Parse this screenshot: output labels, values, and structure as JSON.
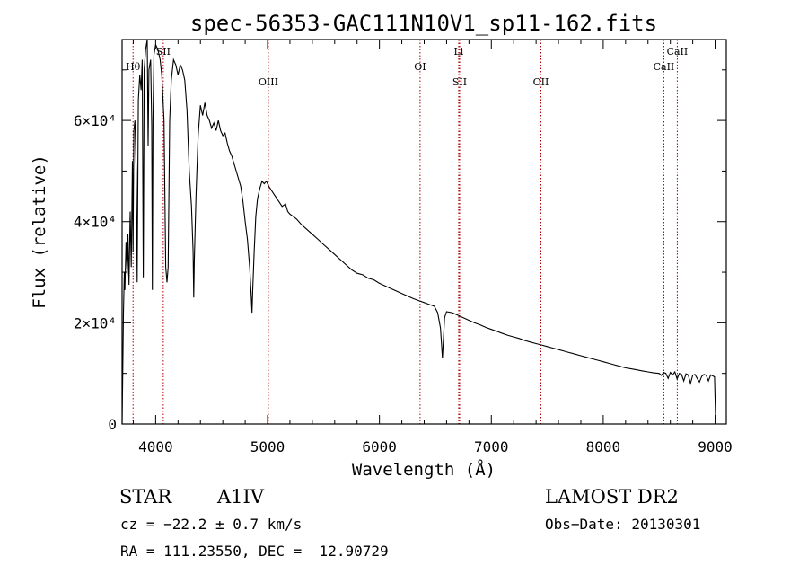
{
  "chart_data": {
    "type": "line",
    "title": "spec-56353-GAC111N10V1_sp11-162.fits",
    "xlabel": "Wavelength (Å)",
    "ylabel": "Flux (relative)",
    "xlim": [
      3700,
      9100
    ],
    "ylim": [
      0,
      76000
    ],
    "xticks": [
      {
        "value": 4000,
        "label": "4000"
      },
      {
        "value": 5000,
        "label": "5000"
      },
      {
        "value": 6000,
        "label": "6000"
      },
      {
        "value": 7000,
        "label": "7000"
      },
      {
        "value": 8000,
        "label": "8000"
      },
      {
        "value": 9000,
        "label": "9000"
      }
    ],
    "yticks": [
      {
        "value": 0,
        "label": "0"
      },
      {
        "value": 20000,
        "label": "2×10⁴"
      },
      {
        "value": 40000,
        "label": "4×10⁴"
      },
      {
        "value": 60000,
        "label": "6×10⁴"
      }
    ],
    "lines": [
      {
        "label": "Hθ",
        "wavelength": 3798,
        "row": 2
      },
      {
        "label": "SII",
        "wavelength": 4068,
        "row": 1
      },
      {
        "label": "OIII",
        "wavelength": 5007,
        "row": 3
      },
      {
        "label": "OI",
        "wavelength": 6363,
        "row": 2
      },
      {
        "label": "Li",
        "wavelength": 6708,
        "row": 1
      },
      {
        "label": "SII",
        "wavelength": 6717,
        "row": 3
      },
      {
        "label": "OII",
        "wavelength": 7443,
        "row": 3
      },
      {
        "label": "CaII",
        "wavelength": 8542,
        "row": 2
      },
      {
        "label": "CaII",
        "wavelength": 8662,
        "row": 1
      }
    ],
    "series": [
      {
        "name": "flux",
        "points": [
          [
            3700,
            0
          ],
          [
            3705,
            8000
          ],
          [
            3712,
            22000
          ],
          [
            3720,
            30000
          ],
          [
            3725,
            26500
          ],
          [
            3735,
            36000
          ],
          [
            3745,
            29500
          ],
          [
            3752,
            37500
          ],
          [
            3762,
            27500
          ],
          [
            3772,
            42000
          ],
          [
            3782,
            31000
          ],
          [
            3792,
            52000
          ],
          [
            3798,
            34000
          ],
          [
            3805,
            58000
          ],
          [
            3815,
            60000
          ],
          [
            3826,
            50000
          ],
          [
            3835,
            28000
          ],
          [
            3845,
            64000
          ],
          [
            3858,
            69000
          ],
          [
            3870,
            66000
          ],
          [
            3880,
            72000
          ],
          [
            3889,
            29000
          ],
          [
            3897,
            70000
          ],
          [
            3910,
            74000
          ],
          [
            3925,
            76000
          ],
          [
            3933,
            55000
          ],
          [
            3940,
            70000
          ],
          [
            3955,
            72000
          ],
          [
            3965,
            59000
          ],
          [
            3970,
            26500
          ],
          [
            3976,
            60000
          ],
          [
            3985,
            73000
          ],
          [
            4000,
            75000
          ],
          [
            4020,
            74000
          ],
          [
            4040,
            72000
          ],
          [
            4055,
            69000
          ],
          [
            4075,
            60000
          ],
          [
            4090,
            31000
          ],
          [
            4101,
            28000
          ],
          [
            4112,
            31000
          ],
          [
            4125,
            60000
          ],
          [
            4140,
            68000
          ],
          [
            4160,
            72000
          ],
          [
            4180,
            71000
          ],
          [
            4200,
            69000
          ],
          [
            4220,
            71000
          ],
          [
            4240,
            70000
          ],
          [
            4260,
            68000
          ],
          [
            4280,
            62000
          ],
          [
            4300,
            50000
          ],
          [
            4320,
            43000
          ],
          [
            4335,
            34000
          ],
          [
            4340,
            25000
          ],
          [
            4345,
            32000
          ],
          [
            4360,
            45000
          ],
          [
            4380,
            57000
          ],
          [
            4400,
            63000
          ],
          [
            4420,
            61000
          ],
          [
            4440,
            63500
          ],
          [
            4460,
            61000
          ],
          [
            4480,
            60000
          ],
          [
            4500,
            58500
          ],
          [
            4520,
            59500
          ],
          [
            4540,
            58000
          ],
          [
            4560,
            60000
          ],
          [
            4580,
            58000
          ],
          [
            4600,
            57000
          ],
          [
            4620,
            57500
          ],
          [
            4640,
            55500
          ],
          [
            4660,
            54000
          ],
          [
            4680,
            53000
          ],
          [
            4700,
            51500
          ],
          [
            4720,
            50000
          ],
          [
            4740,
            48500
          ],
          [
            4760,
            47000
          ],
          [
            4780,
            44000
          ],
          [
            4800,
            40000
          ],
          [
            4820,
            36500
          ],
          [
            4840,
            31000
          ],
          [
            4855,
            25000
          ],
          [
            4861,
            22000
          ],
          [
            4867,
            26000
          ],
          [
            4880,
            34000
          ],
          [
            4895,
            41000
          ],
          [
            4910,
            44500
          ],
          [
            4930,
            46500
          ],
          [
            4950,
            48000
          ],
          [
            4970,
            47500
          ],
          [
            4990,
            48000
          ],
          [
            5010,
            47000
          ],
          [
            5040,
            46000
          ],
          [
            5070,
            45000
          ],
          [
            5100,
            44000
          ],
          [
            5130,
            43000
          ],
          [
            5160,
            43500
          ],
          [
            5180,
            42000
          ],
          [
            5200,
            41500
          ],
          [
            5230,
            41000
          ],
          [
            5260,
            40500
          ],
          [
            5300,
            39500
          ],
          [
            5350,
            38500
          ],
          [
            5400,
            37500
          ],
          [
            5450,
            36500
          ],
          [
            5500,
            35500
          ],
          [
            5550,
            34500
          ],
          [
            5600,
            33500
          ],
          [
            5650,
            32500
          ],
          [
            5700,
            31500
          ],
          [
            5750,
            30500
          ],
          [
            5800,
            29800
          ],
          [
            5850,
            29500
          ],
          [
            5900,
            28800
          ],
          [
            5950,
            28500
          ],
          [
            6000,
            27800
          ],
          [
            6050,
            27300
          ],
          [
            6100,
            26800
          ],
          [
            6150,
            26300
          ],
          [
            6200,
            25800
          ],
          [
            6250,
            25300
          ],
          [
            6300,
            24800
          ],
          [
            6350,
            24400
          ],
          [
            6400,
            24000
          ],
          [
            6450,
            23600
          ],
          [
            6490,
            23300
          ],
          [
            6520,
            22000
          ],
          [
            6545,
            19000
          ],
          [
            6556,
            15500
          ],
          [
            6563,
            13000
          ],
          [
            6570,
            16000
          ],
          [
            6582,
            21000
          ],
          [
            6600,
            22200
          ],
          [
            6650,
            22000
          ],
          [
            6700,
            21500
          ],
          [
            6750,
            21000
          ],
          [
            6800,
            20500
          ],
          [
            6850,
            20000
          ],
          [
            6900,
            19600
          ],
          [
            6950,
            19100
          ],
          [
            7000,
            18700
          ],
          [
            7050,
            18300
          ],
          [
            7100,
            17900
          ],
          [
            7150,
            17500
          ],
          [
            7200,
            17200
          ],
          [
            7250,
            16900
          ],
          [
            7300,
            16500
          ],
          [
            7350,
            16200
          ],
          [
            7400,
            15900
          ],
          [
            7450,
            15600
          ],
          [
            7500,
            15300
          ],
          [
            7550,
            15000
          ],
          [
            7600,
            14700
          ],
          [
            7650,
            14400
          ],
          [
            7700,
            14100
          ],
          [
            7750,
            13800
          ],
          [
            7800,
            13500
          ],
          [
            7850,
            13200
          ],
          [
            7900,
            12900
          ],
          [
            7950,
            12600
          ],
          [
            8000,
            12300
          ],
          [
            8050,
            12000
          ],
          [
            8100,
            11700
          ],
          [
            8150,
            11400
          ],
          [
            8200,
            11100
          ],
          [
            8250,
            10900
          ],
          [
            8300,
            10700
          ],
          [
            8350,
            10500
          ],
          [
            8400,
            10300
          ],
          [
            8450,
            10100
          ],
          [
            8500,
            10000
          ],
          [
            8520,
            9600
          ],
          [
            8540,
            10200
          ],
          [
            8560,
            10000
          ],
          [
            8580,
            9000
          ],
          [
            8600,
            10200
          ],
          [
            8620,
            9700
          ],
          [
            8640,
            10300
          ],
          [
            8660,
            8900
          ],
          [
            8680,
            10000
          ],
          [
            8700,
            9800
          ],
          [
            8720,
            8500
          ],
          [
            8740,
            9900
          ],
          [
            8760,
            9700
          ],
          [
            8780,
            8000
          ],
          [
            8800,
            9600
          ],
          [
            8820,
            9800
          ],
          [
            8840,
            9000
          ],
          [
            8860,
            8300
          ],
          [
            8880,
            9400
          ],
          [
            8900,
            9800
          ],
          [
            8920,
            9600
          ],
          [
            8940,
            8500
          ],
          [
            8960,
            9700
          ],
          [
            8980,
            9500
          ],
          [
            8995,
            9300
          ],
          [
            9000,
            5000
          ],
          [
            9005,
            0
          ]
        ]
      }
    ]
  },
  "info": {
    "object_class": "STAR",
    "subclass": "A1IV",
    "survey": "LAMOST DR2",
    "redshift": "cz = −22.2 ± 0.7 km/s",
    "obs_date": "Obs−Date: 20130301",
    "coords": "RA = 111.23550, DEC =  12.90729"
  }
}
